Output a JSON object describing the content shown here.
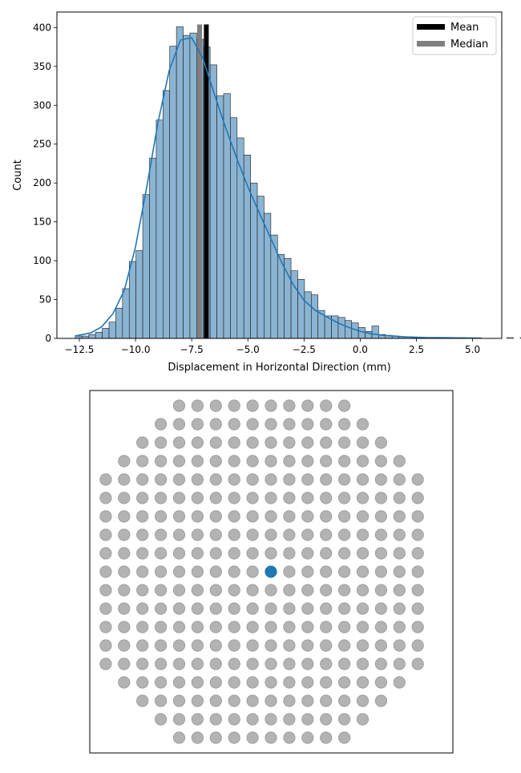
{
  "chart_data": [
    {
      "type": "bar",
      "subtype": "histogram_with_kde",
      "xlabel": "Displacement in Horizontal Direction (mm)",
      "ylabel": "Count",
      "xlim": [
        -13.5,
        6.3
      ],
      "ylim": [
        0,
        420
      ],
      "xticks": [
        -12.5,
        -10.0,
        -7.5,
        -5.0,
        -2.5,
        0.0,
        2.5,
        5.0
      ],
      "xtick_labels": [
        "−12.5",
        "−10.0",
        "−7.5",
        "−5.0",
        "−2.5",
        "0.0",
        "2.5",
        "5.0"
      ],
      "yticks": [
        0,
        50,
        100,
        150,
        200,
        250,
        300,
        350,
        400
      ],
      "ytick_labels": [
        "0",
        "50",
        "100",
        "150",
        "200",
        "250",
        "300",
        "350",
        "400"
      ],
      "grid": false,
      "legend_position": "top-right",
      "bins": {
        "start": -12.68,
        "width": 0.3,
        "counts": [
          3,
          3,
          5,
          8,
          13,
          21,
          39,
          64,
          99,
          113,
          185,
          232,
          281,
          319,
          376,
          401,
          390,
          393,
          385,
          375,
          352,
          312,
          315,
          284,
          258,
          236,
          200,
          183,
          161,
          133,
          108,
          103,
          87,
          76,
          60,
          56,
          36,
          29,
          29,
          27,
          23,
          20,
          14,
          9,
          16,
          5,
          4,
          3,
          2,
          2,
          1,
          1,
          1,
          1,
          1,
          1,
          0,
          1,
          0,
          0,
          0,
          0,
          0,
          0,
          1,
          0,
          1
        ]
      },
      "kde": {
        "x": [
          -12.7,
          -12.0,
          -11.5,
          -11.0,
          -10.5,
          -10.0,
          -9.5,
          -9.0,
          -8.5,
          -8.0,
          -7.5,
          -7.0,
          -6.5,
          -6.0,
          -5.5,
          -5.0,
          -4.5,
          -4.0,
          -3.5,
          -3.0,
          -2.5,
          -2.0,
          -1.5,
          -1.0,
          -0.5,
          0.0,
          0.5,
          1.0,
          1.5,
          2.0,
          2.5,
          3.0,
          3.5,
          4.0,
          4.5,
          5.0,
          5.4
        ],
        "y": [
          3,
          7,
          15,
          32,
          62,
          118,
          195,
          278,
          345,
          384,
          387,
          360,
          315,
          272,
          232,
          195,
          162,
          130,
          98,
          70,
          49,
          36,
          28,
          20,
          14,
          9,
          6,
          4,
          3,
          2,
          1.5,
          1,
          1,
          0.8,
          0.6,
          0.4,
          0.3
        ]
      },
      "mean": -6.85,
      "median": -7.15,
      "colors": {
        "bar_fill": "#8bb4d3",
        "bar_edge": "#1a1a1a",
        "kde_line": "#1f77b4",
        "mean_line": "#000000",
        "median_line": "#808080"
      },
      "legend": [
        {
          "label": "Mean",
          "color": "#000000"
        },
        {
          "label": "Median",
          "color": "#808080"
        }
      ]
    },
    {
      "type": "scatter",
      "subtype": "circular_grid_map",
      "rows": [
        {
          "row": 0,
          "cols": [
            -5,
            4
          ]
        },
        {
          "row": 1,
          "cols": [
            -6,
            5
          ]
        },
        {
          "row": 2,
          "cols": [
            -7,
            6
          ]
        },
        {
          "row": 3,
          "cols": [
            -8,
            7
          ]
        },
        {
          "row": 4,
          "cols": [
            -9,
            8
          ]
        },
        {
          "row": 5,
          "cols": [
            -9,
            8
          ]
        },
        {
          "row": 6,
          "cols": [
            -9,
            8
          ]
        },
        {
          "row": 7,
          "cols": [
            -9,
            8
          ]
        },
        {
          "row": 8,
          "cols": [
            -9,
            8
          ]
        },
        {
          "row": 9,
          "cols": [
            -9,
            8
          ]
        },
        {
          "row": 10,
          "cols": [
            -9,
            8
          ]
        },
        {
          "row": 11,
          "cols": [
            -9,
            8
          ]
        },
        {
          "row": 12,
          "cols": [
            -9,
            8
          ]
        },
        {
          "row": 13,
          "cols": [
            -9,
            8
          ]
        },
        {
          "row": 14,
          "cols": [
            -9,
            8
          ]
        },
        {
          "row": 15,
          "cols": [
            -8,
            7
          ]
        },
        {
          "row": 16,
          "cols": [
            -7,
            6
          ]
        },
        {
          "row": 17,
          "cols": [
            -6,
            5
          ]
        },
        {
          "row": 18,
          "cols": [
            -5,
            4
          ]
        }
      ],
      "highlight": {
        "row": 9,
        "col": 0
      },
      "colors": {
        "point": "#b3b3b3",
        "point_edge": "#999999",
        "highlight": "#1f77b4"
      }
    }
  ]
}
